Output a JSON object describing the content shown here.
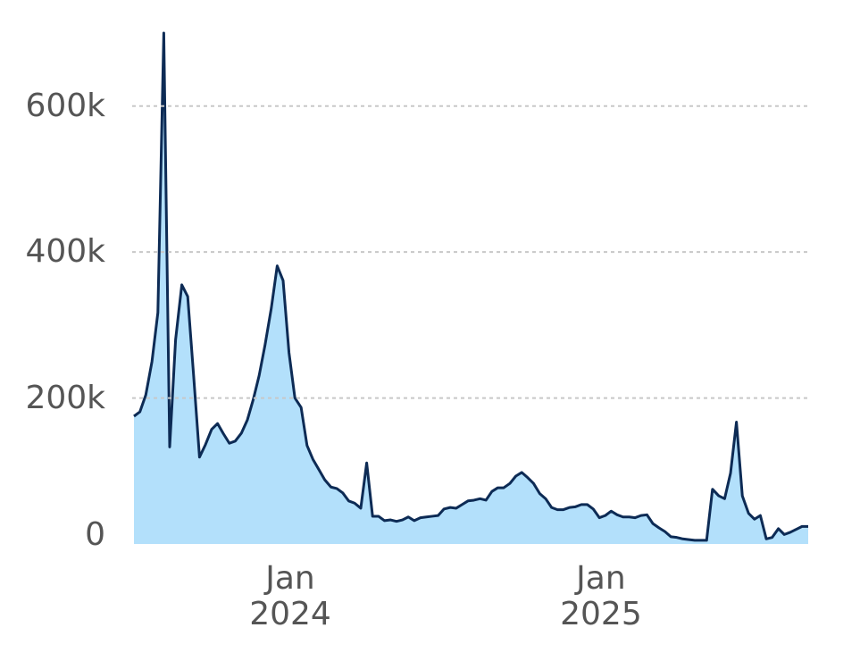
{
  "chart_data": {
    "type": "area",
    "x": [
      2023.497,
      2023.516,
      2023.535,
      2023.555,
      2023.574,
      2023.593,
      2023.612,
      2023.631,
      2023.651,
      2023.67,
      2023.689,
      2023.708,
      2023.727,
      2023.747,
      2023.766,
      2023.785,
      2023.804,
      2023.823,
      2023.843,
      2023.862,
      2023.881,
      2023.9,
      2023.919,
      2023.939,
      2023.958,
      2023.977,
      2023.996,
      2024.015,
      2024.035,
      2024.054,
      2024.073,
      2024.092,
      2024.111,
      2024.131,
      2024.15,
      2024.169,
      2024.188,
      2024.207,
      2024.227,
      2024.246,
      2024.265,
      2024.284,
      2024.303,
      2024.323,
      2024.342,
      2024.361,
      2024.38,
      2024.399,
      2024.419,
      2024.438,
      2024.457,
      2024.476,
      2024.495,
      2024.515,
      2024.534,
      2024.553,
      2024.572,
      2024.591,
      2024.611,
      2024.63,
      2024.649,
      2024.668,
      2024.687,
      2024.707,
      2024.726,
      2024.745,
      2024.764,
      2024.783,
      2024.803,
      2024.822,
      2024.841,
      2024.86,
      2024.879,
      2024.899,
      2024.918,
      2024.937,
      2024.956,
      2024.975,
      2024.995,
      2025.014,
      2025.033,
      2025.052,
      2025.071,
      2025.091,
      2025.11,
      2025.129,
      2025.148,
      2025.167,
      2025.187,
      2025.206,
      2025.225,
      2025.244,
      2025.263,
      2025.283,
      2025.302,
      2025.321,
      2025.34,
      2025.359,
      2025.379,
      2025.398,
      2025.417,
      2025.436,
      2025.455,
      2025.475,
      2025.494,
      2025.513,
      2025.532,
      2025.551,
      2025.571,
      2025.59,
      2025.609,
      2025.628,
      2025.647,
      2025.667
    ],
    "values": [
      175000,
      181000,
      204000,
      250000,
      317000,
      700000,
      133000,
      280000,
      355000,
      339000,
      231000,
      119000,
      136000,
      157000,
      165000,
      151000,
      138000,
      141000,
      152000,
      170000,
      198000,
      231000,
      273000,
      323000,
      381000,
      361000,
      262000,
      200000,
      187000,
      135000,
      116000,
      102000,
      88000,
      78000,
      76000,
      70000,
      59000,
      56000,
      49000,
      111000,
      38000,
      38000,
      32000,
      33000,
      31000,
      33000,
      37000,
      32000,
      36000,
      37000,
      38000,
      39000,
      48000,
      50000,
      49000,
      54000,
      59000,
      60000,
      62000,
      60000,
      72000,
      77000,
      77000,
      83000,
      93000,
      98000,
      91000,
      83000,
      69000,
      62000,
      50000,
      47000,
      47000,
      50000,
      51000,
      54000,
      54000,
      48000,
      36000,
      39000,
      45000,
      40000,
      37000,
      37000,
      36000,
      39000,
      40000,
      28000,
      22000,
      17000,
      10000,
      9000,
      7000,
      6000,
      5000,
      5000,
      5000,
      75000,
      66000,
      62000,
      97000,
      167000,
      66000,
      42000,
      34000,
      39000,
      7000,
      9000,
      21000,
      13000,
      16000,
      20000,
      24000,
      24000
    ],
    "line_color": "#0d2b55",
    "fill_color": "#b3e0fb",
    "xlim": [
      2023.497,
      2025.667
    ],
    "ylim": [
      0,
      700000
    ],
    "xticks": [
      {
        "value": 2024,
        "label": "Jan\n2024"
      },
      {
        "value": 2025,
        "label": "Jan\n2025"
      }
    ],
    "yticks": [
      0,
      {
        "value": 200000,
        "label": "200k"
      },
      {
        "value": 400000,
        "label": "400k"
      },
      {
        "value": 600000,
        "label": "600k"
      }
    ],
    "grid": true
  }
}
